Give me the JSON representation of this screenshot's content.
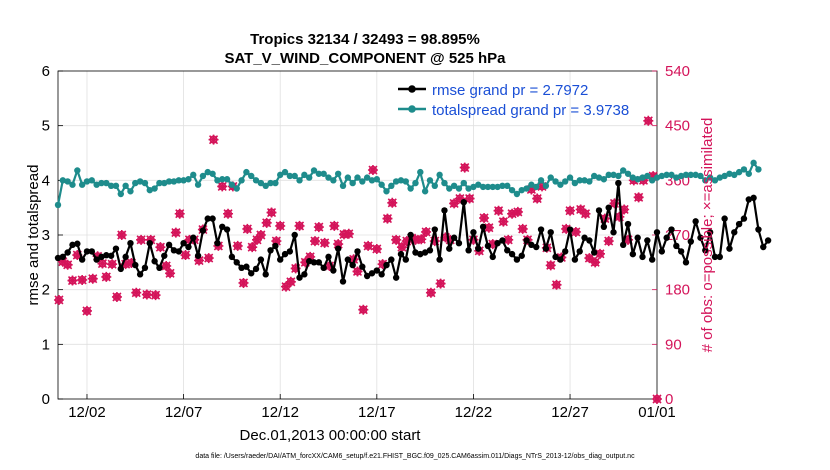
{
  "chart_data": {
    "type": "line",
    "title_line1": "Tropics 32134 / 32493 = 98.895%",
    "title_line2": "SAT_V_WIND_COMPONENT @ 525 hPa",
    "xlabel": "Dec.01,2013 00:00:00 start",
    "ylabel_left": "rmse and totalspread",
    "ylabel_right": "# of obs: o=possible; ×=assimilated",
    "footer": "data file: /Users/raeder/DAI/ATM_forcXX/CAM6_setup/f.e21.FHIST_BGC.f09_025.CAM6assim.011/Diags_NTrS_2013-12/obs_diag_output.nc",
    "ylim_left": [
      0,
      6
    ],
    "ylim_right": [
      0,
      540
    ],
    "xlim": [
      0.5,
      31.5
    ],
    "yticks_left": [
      "0",
      "1",
      "2",
      "3",
      "4",
      "5",
      "6"
    ],
    "yticks_right": [
      "0",
      "90",
      "180",
      "270",
      "360",
      "450",
      "540"
    ],
    "xtick_labels": [
      "12/02",
      "12/07",
      "12/12",
      "12/17",
      "12/22",
      "12/27",
      "01/01"
    ],
    "xtick_positions": [
      2,
      7,
      12,
      17,
      22,
      27,
      32
    ],
    "colors": {
      "rmse": "#000000",
      "spread": "#1e8c8c",
      "obs": "#d4145a",
      "right_axis": "#d4145a",
      "legend_text": "#1a4fd6",
      "grid": "#e0e0e0"
    },
    "series": [
      {
        "name": "rmse grand pr = 2.7972",
        "axis": "left",
        "x_start": 0.5,
        "x_step": 0.25,
        "values": [
          2.58,
          2.6,
          2.68,
          2.82,
          2.84,
          2.55,
          2.7,
          2.7,
          2.55,
          2.6,
          2.63,
          2.62,
          2.75,
          2.38,
          2.6,
          2.85,
          2.45,
          2.28,
          2.4,
          2.85,
          2.52,
          2.4,
          2.62,
          2.82,
          2.72,
          2.7,
          2.85,
          2.78,
          2.95,
          2.62,
          3.08,
          3.3,
          3.3,
          2.85,
          3.15,
          3.1,
          2.6,
          2.5,
          2.4,
          2.42,
          2.3,
          2.38,
          2.55,
          2.28,
          2.72,
          2.8,
          2.55,
          2.65,
          2.7,
          3.0,
          2.22,
          2.28,
          2.52,
          2.5,
          2.5,
          2.4,
          2.6,
          2.35,
          2.75,
          2.15,
          2.55,
          2.45,
          2.7,
          2.42,
          2.25,
          2.3,
          2.35,
          2.28,
          2.45,
          2.55,
          2.22,
          2.65,
          2.55,
          3.0,
          2.68,
          2.65,
          2.68,
          2.72,
          3.1,
          2.55,
          3.45,
          2.75,
          2.95,
          2.85,
          3.6,
          2.72,
          3.05,
          2.75,
          3.15,
          2.8,
          2.6,
          2.85,
          2.9,
          2.72,
          2.65,
          2.55,
          2.62,
          2.9,
          2.82,
          2.78,
          3.1,
          2.75,
          3.05,
          2.6,
          2.55,
          2.7,
          3.1,
          2.55,
          2.7,
          2.95,
          2.9,
          2.68,
          3.45,
          3.15,
          3.5,
          3.05,
          3.95,
          2.82,
          3.2,
          2.65,
          2.95,
          2.6,
          2.9,
          2.55,
          3.05,
          2.7,
          2.95,
          3.1,
          2.8,
          2.7,
          2.5,
          2.88,
          3.25,
          2.95,
          2.72,
          3.05,
          2.6,
          2.6,
          3.3,
          2.75,
          3.05,
          3.2,
          3.3,
          3.65,
          3.68,
          3.1,
          2.78,
          2.9
        ]
      },
      {
        "name": "totalspread grand pr = 3.9738",
        "axis": "left",
        "x_start": 0.5,
        "x_step": 0.25,
        "values": [
          3.55,
          4.0,
          3.98,
          3.92,
          4.18,
          3.92,
          3.98,
          4.0,
          3.92,
          3.95,
          3.95,
          3.9,
          3.9,
          3.75,
          3.9,
          3.8,
          3.95,
          3.98,
          3.95,
          3.82,
          3.85,
          3.95,
          3.95,
          3.98,
          3.98,
          4.0,
          4.0,
          4.02,
          4.1,
          3.92,
          4.08,
          4.15,
          4.12,
          4.0,
          4.02,
          4.02,
          3.92,
          3.85,
          4.0,
          4.15,
          4.08,
          4.0,
          3.95,
          3.9,
          3.95,
          3.95,
          4.1,
          4.15,
          4.08,
          4.08,
          4.0,
          4.1,
          4.05,
          4.18,
          4.12,
          4.12,
          4.05,
          4.0,
          4.12,
          3.9,
          4.05,
          3.95,
          4.05,
          3.98,
          4.05,
          4.0,
          4.02,
          3.92,
          3.8,
          3.9,
          3.98,
          4.0,
          3.98,
          3.85,
          3.95,
          4.15,
          3.8,
          4.0,
          3.9,
          4.1,
          3.95,
          3.85,
          3.9,
          3.85,
          3.95,
          3.85,
          3.88,
          3.92,
          3.88,
          3.88,
          3.88,
          3.88,
          3.9,
          3.9,
          3.82,
          3.75,
          3.82,
          3.85,
          3.92,
          3.88,
          4.0,
          3.9,
          4.05,
          3.98,
          3.92,
          3.98,
          4.05,
          3.95,
          4.0,
          4.0,
          3.98,
          4.08,
          4.05,
          4.02,
          4.1,
          4.1,
          4.08,
          4.18,
          4.12,
          4.05,
          4.02,
          4.05,
          4.08,
          4.0,
          4.05,
          4.08,
          4.1,
          4.1,
          4.05,
          4.08,
          4.1,
          4.1,
          4.1,
          4.08,
          4.0,
          4.05,
          4.0,
          4.05,
          4.08,
          4.12,
          4.1,
          4.15,
          4.2,
          4.12,
          4.32,
          4.2
        ]
      }
    ],
    "obs": [
      {
        "x": 0.55,
        "v": 163
      },
      {
        "x": 0.75,
        "v": 226
      },
      {
        "x": 1.0,
        "v": 221
      },
      {
        "x": 1.25,
        "v": 195
      },
      {
        "x": 1.5,
        "v": 237
      },
      {
        "x": 1.75,
        "v": 196
      },
      {
        "x": 2.0,
        "v": 145
      },
      {
        "x": 2.3,
        "v": 198
      },
      {
        "x": 2.55,
        "v": 235
      },
      {
        "x": 2.8,
        "v": 223
      },
      {
        "x": 3.0,
        "v": 201
      },
      {
        "x": 3.3,
        "v": 222
      },
      {
        "x": 3.55,
        "v": 168
      },
      {
        "x": 3.8,
        "v": 270
      },
      {
        "x": 4.0,
        "v": 222
      },
      {
        "x": 4.3,
        "v": 224
      },
      {
        "x": 4.55,
        "v": 175
      },
      {
        "x": 4.8,
        "v": 262
      },
      {
        "x": 5.1,
        "v": 172
      },
      {
        "x": 5.3,
        "v": 262
      },
      {
        "x": 5.55,
        "v": 171
      },
      {
        "x": 5.8,
        "v": 250
      },
      {
        "x": 6.1,
        "v": 219
      },
      {
        "x": 6.3,
        "v": 207
      },
      {
        "x": 6.6,
        "v": 274
      },
      {
        "x": 6.8,
        "v": 305
      },
      {
        "x": 7.1,
        "v": 237
      },
      {
        "x": 7.3,
        "v": 262
      },
      {
        "x": 7.55,
        "v": 262
      },
      {
        "x": 7.8,
        "v": 228
      },
      {
        "x": 8.0,
        "v": 279
      },
      {
        "x": 8.3,
        "v": 232
      },
      {
        "x": 8.55,
        "v": 427
      },
      {
        "x": 8.8,
        "v": 252
      },
      {
        "x": 9.0,
        "v": 350
      },
      {
        "x": 9.3,
        "v": 305
      },
      {
        "x": 9.55,
        "v": 350
      },
      {
        "x": 9.8,
        "v": 252
      },
      {
        "x": 10.1,
        "v": 191
      },
      {
        "x": 10.3,
        "v": 280
      },
      {
        "x": 10.55,
        "v": 250
      },
      {
        "x": 10.8,
        "v": 262
      },
      {
        "x": 11.0,
        "v": 270
      },
      {
        "x": 11.3,
        "v": 290
      },
      {
        "x": 11.55,
        "v": 307
      },
      {
        "x": 11.8,
        "v": 260
      },
      {
        "x": 12.0,
        "v": 285
      },
      {
        "x": 12.3,
        "v": 185
      },
      {
        "x": 12.55,
        "v": 193
      },
      {
        "x": 12.8,
        "v": 215
      },
      {
        "x": 13.0,
        "v": 285
      },
      {
        "x": 13.3,
        "v": 225
      },
      {
        "x": 13.55,
        "v": 234
      },
      {
        "x": 13.8,
        "v": 260
      },
      {
        "x": 14.0,
        "v": 283
      },
      {
        "x": 14.3,
        "v": 257
      },
      {
        "x": 14.55,
        "v": 219
      },
      {
        "x": 14.8,
        "v": 285
      },
      {
        "x": 15.0,
        "v": 255
      },
      {
        "x": 15.3,
        "v": 271
      },
      {
        "x": 15.55,
        "v": 272
      },
      {
        "x": 15.8,
        "v": 230
      },
      {
        "x": 16.0,
        "v": 210
      },
      {
        "x": 16.3,
        "v": 147
      },
      {
        "x": 16.55,
        "v": 252
      },
      {
        "x": 16.8,
        "v": 377
      },
      {
        "x": 17.0,
        "v": 247
      },
      {
        "x": 17.3,
        "v": 222
      },
      {
        "x": 17.55,
        "v": 297
      },
      {
        "x": 17.8,
        "v": 323
      },
      {
        "x": 18.0,
        "v": 262
      },
      {
        "x": 18.3,
        "v": 250
      },
      {
        "x": 18.55,
        "v": 260
      },
      {
        "x": 18.8,
        "v": 265
      },
      {
        "x": 19.0,
        "v": 262
      },
      {
        "x": 19.3,
        "v": 263
      },
      {
        "x": 19.55,
        "v": 275
      },
      {
        "x": 19.8,
        "v": 175
      },
      {
        "x": 20.0,
        "v": 260
      },
      {
        "x": 20.3,
        "v": 190
      },
      {
        "x": 20.55,
        "v": 266
      },
      {
        "x": 20.8,
        "v": 262
      },
      {
        "x": 21.0,
        "v": 322
      },
      {
        "x": 21.3,
        "v": 330
      },
      {
        "x": 21.55,
        "v": 381
      },
      {
        "x": 21.8,
        "v": 330
      },
      {
        "x": 22.0,
        "v": 262
      },
      {
        "x": 22.3,
        "v": 244
      },
      {
        "x": 22.55,
        "v": 298
      },
      {
        "x": 22.8,
        "v": 282
      },
      {
        "x": 23.0,
        "v": 255
      },
      {
        "x": 23.3,
        "v": 310
      },
      {
        "x": 23.55,
        "v": 292
      },
      {
        "x": 23.8,
        "v": 262
      },
      {
        "x": 24.0,
        "v": 305
      },
      {
        "x": 24.3,
        "v": 308
      },
      {
        "x": 24.55,
        "v": 280
      },
      {
        "x": 24.8,
        "v": 262
      },
      {
        "x": 25.0,
        "v": 345
      },
      {
        "x": 25.3,
        "v": 330
      },
      {
        "x": 25.55,
        "v": 350
      },
      {
        "x": 25.8,
        "v": 249
      },
      {
        "x": 26.0,
        "v": 220
      },
      {
        "x": 26.3,
        "v": 188
      },
      {
        "x": 26.55,
        "v": 233
      },
      {
        "x": 26.8,
        "v": 280
      },
      {
        "x": 27.0,
        "v": 310
      },
      {
        "x": 27.3,
        "v": 275
      },
      {
        "x": 27.55,
        "v": 312
      },
      {
        "x": 27.8,
        "v": 305
      },
      {
        "x": 28.0,
        "v": 232
      },
      {
        "x": 28.3,
        "v": 225
      },
      {
        "x": 28.55,
        "v": 239
      },
      {
        "x": 28.8,
        "v": 297
      },
      {
        "x": 29.0,
        "v": 260
      },
      {
        "x": 29.3,
        "v": 322
      },
      {
        "x": 29.55,
        "v": 300
      },
      {
        "x": 29.8,
        "v": 312
      },
      {
        "x": 30.0,
        "v": 262
      },
      {
        "x": 30.3,
        "v": 360
      },
      {
        "x": 30.55,
        "v": 332
      },
      {
        "x": 30.8,
        "v": 360
      },
      {
        "x": 31.05,
        "v": 458
      },
      {
        "x": 31.3,
        "v": 367
      },
      {
        "x": 31.5,
        "v": 0
      }
    ]
  }
}
